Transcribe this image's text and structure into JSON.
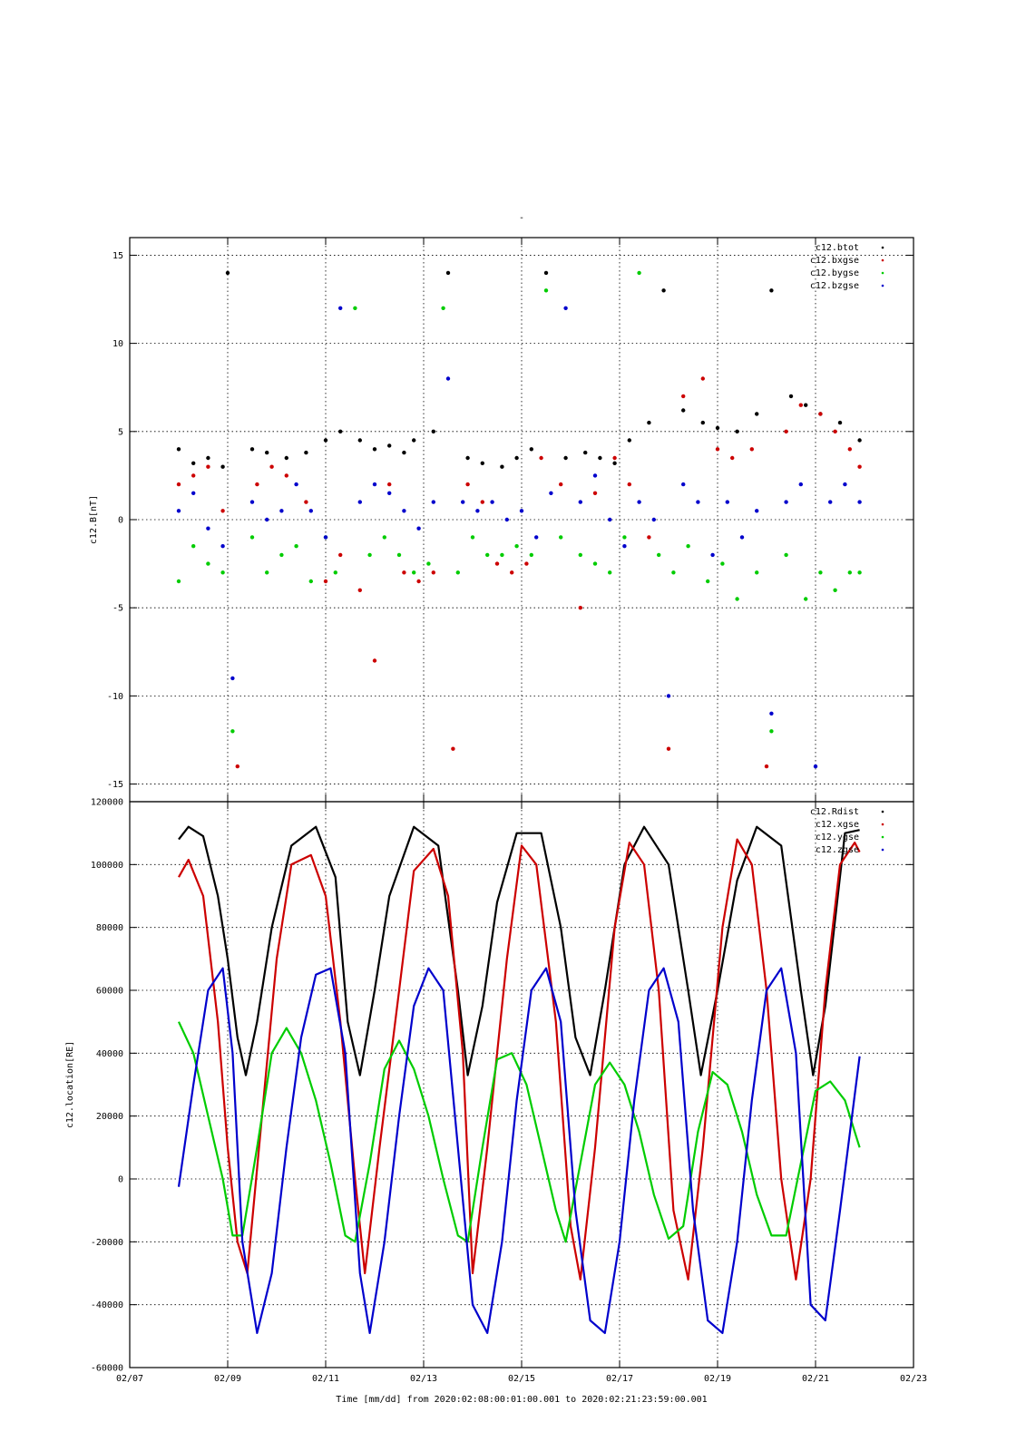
{
  "top_mark": "-",
  "xlabel": "Time [mm/dd]  from 2020:02:08:00:01:00.001  to  2020:02:21:23:59:00.001",
  "x_ticks": [
    "02/07",
    "02/09",
    "02/11",
    "02/13",
    "02/15",
    "02/17",
    "02/19",
    "02/21",
    "02/23"
  ],
  "colors": {
    "black": "#000000",
    "red": "#cc0000",
    "green": "#00cc00",
    "blue": "#0000cc"
  },
  "chart_data": [
    {
      "type": "scatter",
      "ylabel": "c12.B[nT]",
      "xlim_days": [
        7,
        23
      ],
      "ylim": [
        -16,
        16
      ],
      "yticks": [
        -15,
        -10,
        -5,
        0,
        5,
        10,
        15
      ],
      "legend_position": "top-right",
      "grid": true,
      "series": [
        {
          "name": "c12.btot",
          "color": "#000000",
          "x": [
            8.0,
            8.3,
            8.6,
            8.9,
            9.0,
            9.5,
            9.8,
            10.2,
            10.6,
            11.0,
            11.3,
            11.7,
            12.0,
            12.3,
            12.6,
            12.8,
            13.2,
            13.5,
            13.9,
            14.2,
            14.6,
            14.9,
            15.2,
            15.5,
            15.9,
            16.3,
            16.6,
            16.9,
            17.2,
            17.6,
            17.9,
            18.3,
            18.7,
            19.0,
            19.4,
            19.8,
            20.1,
            20.5,
            20.8,
            21.1,
            21.5,
            21.9
          ],
          "y": [
            4,
            3.2,
            3.5,
            3,
            14,
            4,
            3.8,
            3.5,
            3.8,
            4.5,
            5,
            4.5,
            4,
            4.2,
            3.8,
            4.5,
            5,
            14,
            3.5,
            3.2,
            3,
            3.5,
            4,
            14,
            3.5,
            3.8,
            3.5,
            3.2,
            4.5,
            5.5,
            13,
            6.2,
            5.5,
            5.2,
            5,
            6,
            13,
            7,
            6.5,
            6,
            5.5,
            4.5
          ]
        },
        {
          "name": "c12.bxgse",
          "color": "#cc0000",
          "x": [
            8.0,
            8.3,
            8.6,
            8.9,
            9.2,
            9.6,
            9.9,
            10.2,
            10.6,
            11.0,
            11.3,
            11.7,
            12.0,
            12.3,
            12.6,
            12.9,
            13.2,
            13.6,
            13.9,
            14.2,
            14.5,
            14.8,
            15.1,
            15.4,
            15.8,
            16.2,
            16.5,
            16.9,
            17.2,
            17.6,
            18.0,
            18.3,
            18.7,
            19.0,
            19.3,
            19.7,
            20.0,
            20.4,
            20.7,
            21.1,
            21.4,
            21.7,
            21.9
          ],
          "y": [
            2,
            2.5,
            3,
            0.5,
            -14,
            2,
            3,
            2.5,
            1,
            -3.5,
            -2,
            -4,
            -8,
            2,
            -3,
            -3.5,
            -3,
            -13,
            2,
            1,
            -2.5,
            -3,
            -2.5,
            3.5,
            2,
            -5,
            1.5,
            3.5,
            2,
            -1,
            -13,
            7,
            8,
            4,
            3.5,
            4,
            -14,
            5,
            6.5,
            6,
            5,
            4,
            3
          ]
        },
        {
          "name": "c12.bygse",
          "color": "#00cc00",
          "x": [
            8.0,
            8.3,
            8.6,
            8.9,
            9.1,
            9.5,
            9.8,
            10.1,
            10.4,
            10.7,
            11.0,
            11.2,
            11.6,
            11.9,
            12.2,
            12.5,
            12.8,
            13.1,
            13.4,
            13.7,
            14.0,
            14.3,
            14.6,
            14.9,
            15.2,
            15.5,
            15.8,
            16.2,
            16.5,
            16.8,
            17.1,
            17.4,
            17.8,
            18.1,
            18.4,
            18.8,
            19.1,
            19.4,
            19.8,
            20.1,
            20.4,
            20.8,
            21.1,
            21.4,
            21.7,
            21.9
          ],
          "y": [
            -3.5,
            -1.5,
            -2.5,
            -3,
            -12,
            -1,
            -3,
            -2,
            -1.5,
            -3.5,
            -1,
            -3,
            12,
            -2,
            -1,
            -2,
            -3,
            -2.5,
            12,
            -3,
            -1,
            -2,
            -2,
            -1.5,
            -2,
            13,
            -1,
            -2,
            -2.5,
            -3,
            -1,
            14,
            -2,
            -3,
            -1.5,
            -3.5,
            -2.5,
            -4.5,
            -3,
            -12,
            -2,
            -4.5,
            -3,
            -4,
            -3,
            -3
          ]
        },
        {
          "name": "c12.bzgse",
          "color": "#0000cc",
          "x": [
            8.0,
            8.3,
            8.6,
            8.9,
            9.1,
            9.5,
            9.8,
            10.1,
            10.4,
            10.7,
            11.0,
            11.3,
            11.7,
            12.0,
            12.3,
            12.6,
            12.9,
            13.2,
            13.5,
            13.8,
            14.1,
            14.4,
            14.7,
            15.0,
            15.3,
            15.6,
            15.9,
            16.2,
            16.5,
            16.8,
            17.1,
            17.4,
            17.7,
            18.0,
            18.3,
            18.6,
            18.9,
            19.2,
            19.5,
            19.8,
            20.1,
            20.4,
            20.7,
            21.0,
            21.3,
            21.6,
            21.9
          ],
          "y": [
            0.5,
            1.5,
            -0.5,
            -1.5,
            -9,
            1,
            0,
            0.5,
            2,
            0.5,
            -1,
            12,
            1,
            2,
            1.5,
            0.5,
            -0.5,
            1,
            8,
            1,
            0.5,
            1,
            0,
            0.5,
            -1,
            1.5,
            12,
            1,
            2.5,
            0,
            -1.5,
            1,
            0,
            -10,
            2,
            1,
            -2,
            1,
            -1,
            0.5,
            -11,
            1,
            2,
            -14,
            1,
            2,
            1
          ]
        }
      ]
    },
    {
      "type": "line",
      "ylabel": "c12.location[RE]",
      "xlim_days": [
        7,
        23
      ],
      "ylim": [
        -60000,
        120000
      ],
      "yticks": [
        -60000,
        -40000,
        -20000,
        0,
        20000,
        40000,
        60000,
        80000,
        100000,
        120000
      ],
      "legend_position": "top-right",
      "grid": true,
      "series": [
        {
          "name": "c12.Rdist",
          "color": "#000000",
          "x": [
            8.0,
            8.2,
            8.5,
            8.8,
            9.0,
            9.2,
            9.37,
            9.6,
            9.9,
            10.3,
            10.8,
            11.2,
            11.45,
            11.7,
            12.0,
            12.3,
            12.8,
            13.3,
            13.7,
            13.9,
            14.2,
            14.5,
            14.9,
            15.4,
            15.8,
            16.1,
            16.4,
            16.7,
            17.1,
            17.5,
            18.0,
            18.4,
            18.66,
            19.0,
            19.4,
            19.8,
            20.3,
            20.7,
            20.95,
            21.2,
            21.6,
            21.9
          ],
          "y": [
            108000,
            112000,
            109000,
            90000,
            70000,
            45000,
            33000,
            50000,
            80000,
            106000,
            112000,
            96000,
            50000,
            33000,
            60000,
            90000,
            112000,
            106000,
            60000,
            33000,
            55000,
            88000,
            110000,
            110000,
            80000,
            45000,
            33000,
            60000,
            100000,
            112000,
            100000,
            60000,
            33000,
            60000,
            95000,
            112000,
            106000,
            60000,
            33000,
            55000,
            110000,
            111000
          ]
        },
        {
          "name": "c12.xgse",
          "color": "#cc0000",
          "x": [
            8.0,
            8.2,
            8.5,
            8.8,
            9.0,
            9.2,
            9.4,
            9.7,
            10.0,
            10.3,
            10.7,
            11.0,
            11.3,
            11.6,
            11.8,
            12.1,
            12.5,
            12.8,
            13.2,
            13.5,
            13.8,
            14.0,
            14.3,
            14.7,
            15.0,
            15.3,
            15.7,
            16.0,
            16.2,
            16.5,
            16.9,
            17.2,
            17.5,
            17.8,
            18.1,
            18.4,
            18.7,
            19.1,
            19.4,
            19.7,
            20.0,
            20.3,
            20.6,
            20.9,
            21.2,
            21.5,
            21.8,
            21.9
          ],
          "y": [
            96000,
            101500,
            90000,
            50000,
            10000,
            -20000,
            -30000,
            20000,
            70000,
            100000,
            103000,
            90000,
            50000,
            0,
            -30000,
            10000,
            60000,
            98000,
            105000,
            90000,
            40000,
            -30000,
            10000,
            70000,
            106000,
            100000,
            50000,
            -15000,
            -32000,
            10000,
            80000,
            107000,
            100000,
            60000,
            -10000,
            -32000,
            10000,
            80000,
            108000,
            100000,
            60000,
            0,
            -32000,
            0,
            60000,
            100000,
            107000,
            104000
          ]
        },
        {
          "name": "c12.ygse",
          "color": "#00cc00",
          "x": [
            8.0,
            8.3,
            8.6,
            8.9,
            9.1,
            9.3,
            9.6,
            9.9,
            10.2,
            10.5,
            10.8,
            11.1,
            11.4,
            11.6,
            11.9,
            12.2,
            12.5,
            12.8,
            13.1,
            13.4,
            13.7,
            13.9,
            14.2,
            14.5,
            14.8,
            15.1,
            15.4,
            15.7,
            15.9,
            16.2,
            16.5,
            16.8,
            17.1,
            17.4,
            17.7,
            18.0,
            18.3,
            18.6,
            18.9,
            19.2,
            19.5,
            19.8,
            20.1,
            20.4,
            20.7,
            21.0,
            21.3,
            21.6,
            21.9
          ],
          "y": [
            50000,
            40000,
            20000,
            0,
            -18000,
            -18000,
            10000,
            40000,
            48000,
            40000,
            25000,
            5000,
            -18000,
            -20000,
            5000,
            35000,
            44000,
            35000,
            20000,
            0,
            -18000,
            -20000,
            10000,
            38000,
            40000,
            30000,
            10000,
            -10000,
            -20000,
            5000,
            30000,
            37000,
            30000,
            15000,
            -5000,
            -19000,
            -15000,
            15000,
            34000,
            30000,
            15000,
            -5000,
            -18000,
            -18000,
            5000,
            28000,
            31000,
            25000,
            10000
          ]
        },
        {
          "name": "c12.zgse",
          "color": "#0000cc",
          "x": [
            8.0,
            8.3,
            8.6,
            8.9,
            9.1,
            9.3,
            9.6,
            9.9,
            10.2,
            10.5,
            10.8,
            11.1,
            11.4,
            11.7,
            11.9,
            12.2,
            12.5,
            12.8,
            13.1,
            13.4,
            13.7,
            14.0,
            14.3,
            14.6,
            14.9,
            15.2,
            15.5,
            15.8,
            16.1,
            16.4,
            16.7,
            17.0,
            17.3,
            17.6,
            17.9,
            18.2,
            18.5,
            18.8,
            19.1,
            19.4,
            19.7,
            20.0,
            20.3,
            20.6,
            20.9,
            21.2,
            21.5,
            21.9
          ],
          "y": [
            -2500,
            30000,
            60000,
            67000,
            40000,
            -20000,
            -49000,
            -30000,
            10000,
            45000,
            65000,
            67000,
            40000,
            -30000,
            -49000,
            -20000,
            20000,
            55000,
            67000,
            60000,
            10000,
            -40000,
            -49000,
            -20000,
            25000,
            60000,
            67000,
            50000,
            -10000,
            -45000,
            -49000,
            -20000,
            25000,
            60000,
            67000,
            50000,
            -10000,
            -45000,
            -49000,
            -20000,
            25000,
            60000,
            67000,
            40000,
            -40000,
            -45000,
            -10000,
            39000
          ]
        }
      ]
    }
  ]
}
